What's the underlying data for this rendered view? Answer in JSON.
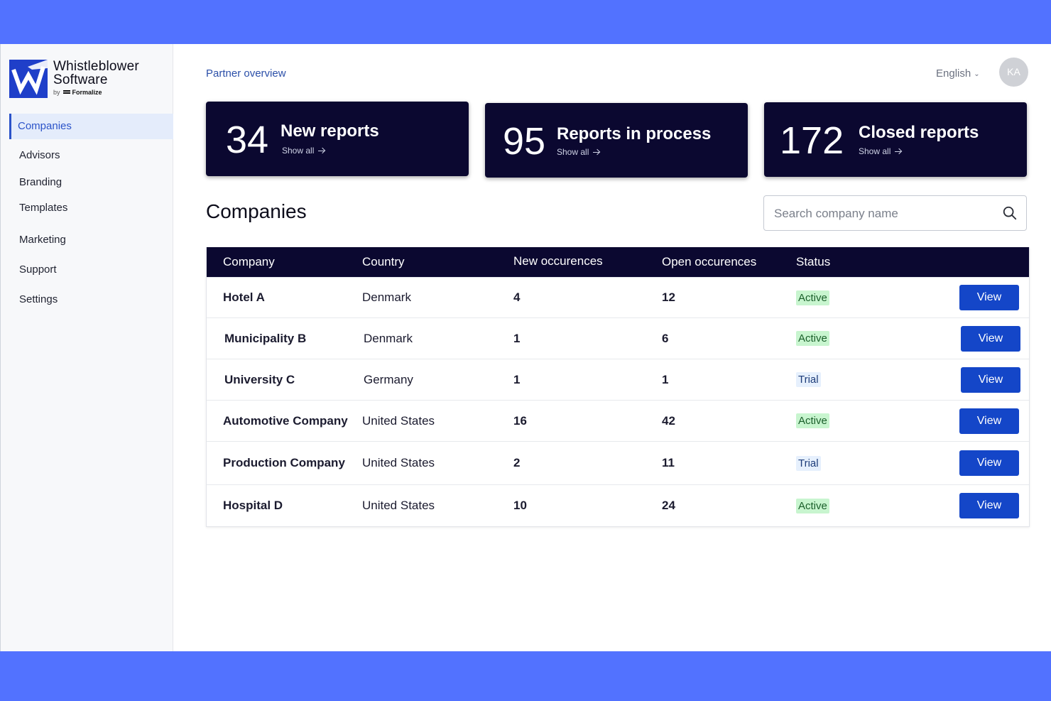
{
  "colors": {
    "frame": "#5272ff",
    "dark": "#0b0830",
    "accent": "#1446c8",
    "active_badge": "#c8f5cf",
    "trial_badge": "#e6f0fd"
  },
  "logo": {
    "name_line1": "Whistleblower",
    "name_line2": "Software",
    "by": "by",
    "brand": "Formalize"
  },
  "sidebar": {
    "items": [
      {
        "label": "Companies",
        "active": true
      },
      {
        "label": "Advisors"
      },
      {
        "label": "Branding"
      },
      {
        "label": "Templates"
      },
      {
        "label": "Marketing"
      },
      {
        "label": "Support"
      },
      {
        "label": "Settings"
      }
    ]
  },
  "header": {
    "breadcrumb": "Partner overview",
    "language": "English",
    "avatar_initials": "KA"
  },
  "stats": [
    {
      "value": "34",
      "label": "New reports",
      "link": "Show all"
    },
    {
      "value": "95",
      "label": "Reports in process",
      "link": "Show all"
    },
    {
      "value": "172",
      "label": "Closed reports",
      "link": "Show all"
    }
  ],
  "companies": {
    "title": "Companies",
    "search_placeholder": "Search company name",
    "columns": {
      "company": "Company",
      "country": "Country",
      "new": "New occurences",
      "open": "Open occurences",
      "status": "Status"
    },
    "view_label": "View",
    "rows": [
      {
        "company": "Hotel A",
        "country": "Denmark",
        "new": "4",
        "open": "12",
        "status": "Active"
      },
      {
        "company": "Municipality B",
        "country": "Denmark",
        "new": "1",
        "open": "6",
        "status": "Active"
      },
      {
        "company": "University C",
        "country": "Germany",
        "new": "1",
        "open": "1",
        "status": "Trial"
      },
      {
        "company": "Automotive Company",
        "country": "United States",
        "new": "16",
        "open": "42",
        "status": "Active"
      },
      {
        "company": "Production Company",
        "country": "United States",
        "new": "2",
        "open": "11",
        "status": "Trial"
      },
      {
        "company": "Hospital D",
        "country": "United States",
        "new": "10",
        "open": "24",
        "status": "Active"
      }
    ]
  }
}
